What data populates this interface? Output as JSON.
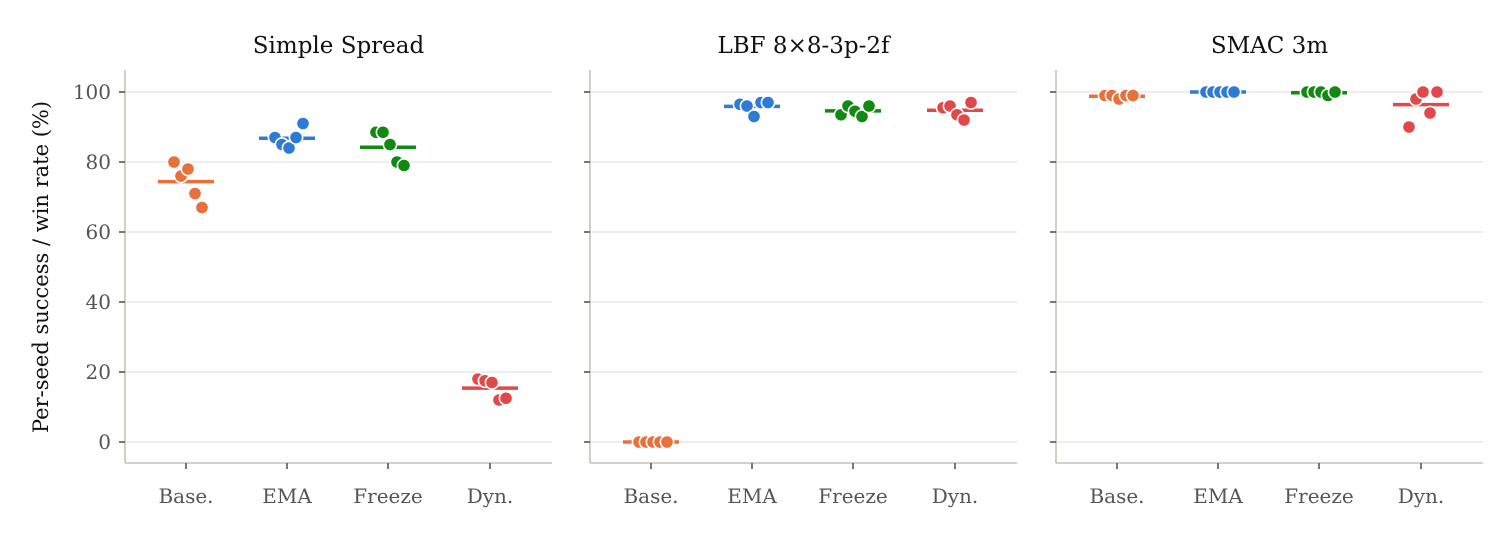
{
  "chart_data": {
    "type": "scatter",
    "ylabel": "Per-seed success / win rate (%)",
    "ylim": [
      -6,
      106
    ],
    "yticks": [
      0,
      20,
      40,
      60,
      80,
      100
    ],
    "ytick_labels": [
      "0",
      "20",
      "40",
      "60",
      "80",
      "100"
    ],
    "categories": [
      "Base.",
      "EMA",
      "Freeze",
      "Dyn."
    ],
    "series_colors": {
      "Base.": "#e8703a",
      "EMA": "#2d7bd6",
      "Freeze": "#108a10",
      "Dyn.": "#e0484a"
    },
    "grid": "horizontal",
    "panels": [
      {
        "title": "Simple Spread",
        "groups": [
          {
            "category": "Base.",
            "seeds": [
              80,
              76,
              78,
              71,
              67
            ],
            "mean": 74.4
          },
          {
            "category": "EMA",
            "seeds": [
              87,
              85,
              84,
              87,
              91
            ],
            "mean": 86.8
          },
          {
            "category": "Freeze",
            "seeds": [
              88.5,
              88.5,
              85,
              80,
              79
            ],
            "mean": 84.2
          },
          {
            "category": "Dyn.",
            "seeds": [
              18,
              17.5,
              17,
              12,
              12.5
            ],
            "mean": 15.4
          }
        ]
      },
      {
        "title": "LBF 8×8-3p-2f",
        "groups": [
          {
            "category": "Base.",
            "seeds": [
              0,
              0,
              0,
              0,
              0
            ],
            "mean": 0
          },
          {
            "category": "EMA",
            "seeds": [
              96.5,
              96,
              93,
              97,
              97
            ],
            "mean": 95.9
          },
          {
            "category": "Freeze",
            "seeds": [
              93.5,
              96,
              94.5,
              93,
              96
            ],
            "mean": 94.6
          },
          {
            "category": "Dyn.",
            "seeds": [
              95.5,
              96,
              93.5,
              92,
              97
            ],
            "mean": 94.8
          }
        ]
      },
      {
        "title": "SMAC 3m",
        "groups": [
          {
            "category": "Base.",
            "seeds": [
              99,
              99,
              98,
              99,
              99
            ],
            "mean": 98.8
          },
          {
            "category": "EMA",
            "seeds": [
              100,
              100,
              100,
              100,
              100
            ],
            "mean": 100
          },
          {
            "category": "Freeze",
            "seeds": [
              100,
              100,
              100,
              99,
              100
            ],
            "mean": 99.8
          },
          {
            "category": "Dyn.",
            "seeds": [
              90,
              98,
              100,
              94,
              100
            ],
            "mean": 96.4
          }
        ]
      }
    ]
  }
}
